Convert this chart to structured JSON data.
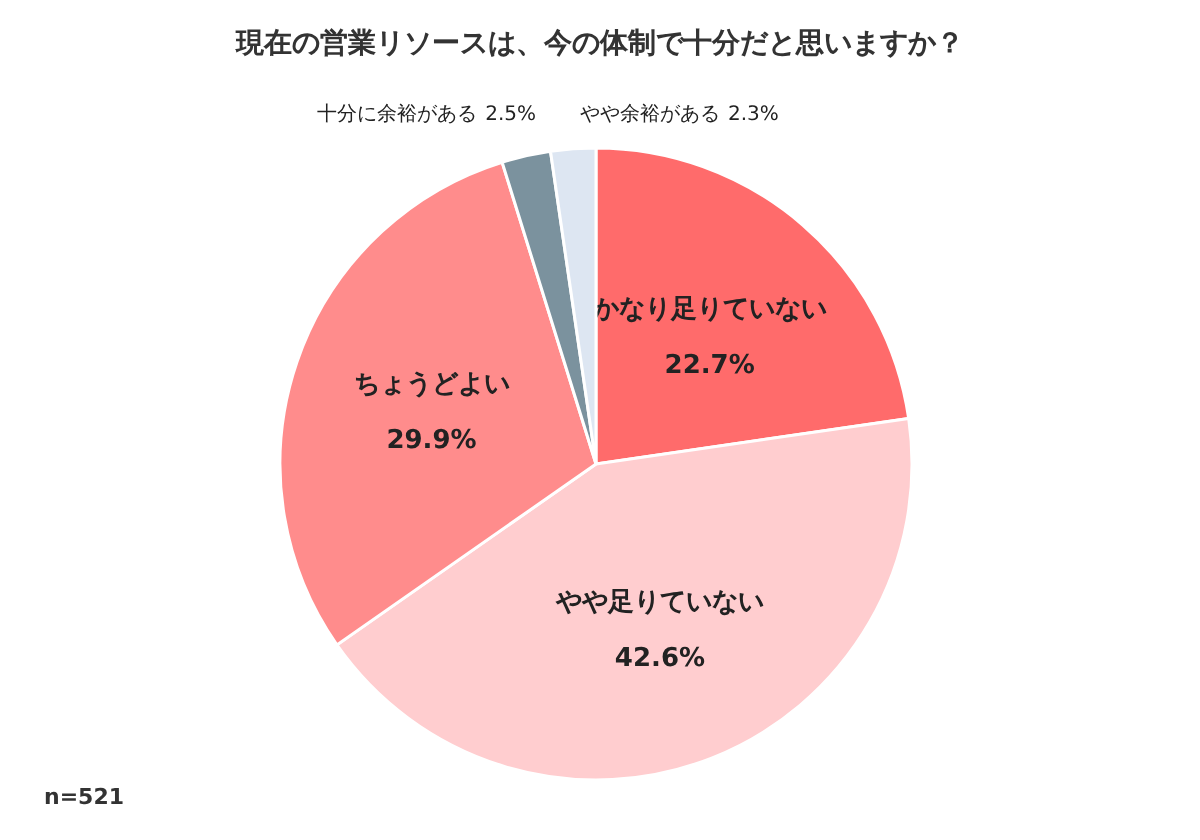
{
  "chart_data": {
    "type": "pie",
    "title": "現在の営業リソースは、今の体制で十分だと思いますか？",
    "categories": [
      "かなり足りていない",
      "やや足りていない",
      "ちょうどよい",
      "十分に余裕がある",
      "やや余裕がある"
    ],
    "values": [
      22.7,
      42.6,
      29.9,
      2.5,
      2.3
    ],
    "value_labels": [
      "22.7%",
      "42.6%",
      "29.9%",
      "2.5%",
      "2.3%"
    ],
    "colors": [
      "#ff6b6b",
      "#ffcdcf",
      "#ff8c8c",
      "#7b929e",
      "#dde6f2"
    ],
    "annotations": [
      "n=521"
    ]
  }
}
